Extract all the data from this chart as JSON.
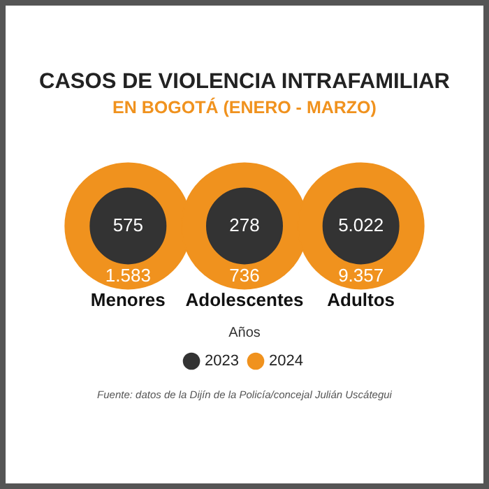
{
  "chart_data": {
    "type": "other",
    "title": "CASOS DE  VIOLENCIA INTRAFAMILIAR",
    "subtitle": "EN BOGOTÁ (ENERO - MARZO)",
    "legend_title": "Años",
    "legend": "bottom",
    "categories": [
      "Menores",
      "Adolescentes",
      "Adultos"
    ],
    "series": [
      {
        "name": "2023",
        "color": "#333333",
        "values": [
          575,
          278,
          5022
        ],
        "value_labels": [
          "575",
          "278",
          "5.022"
        ]
      },
      {
        "name": "2024",
        "color": "#f0921e",
        "values": [
          1583,
          736,
          9357
        ],
        "value_labels": [
          "1.583",
          "736",
          "9.357"
        ]
      }
    ],
    "annotations": [
      "Fuente: datos de la Dijín de la Policía/concejal Julián Uscátegui"
    ]
  }
}
